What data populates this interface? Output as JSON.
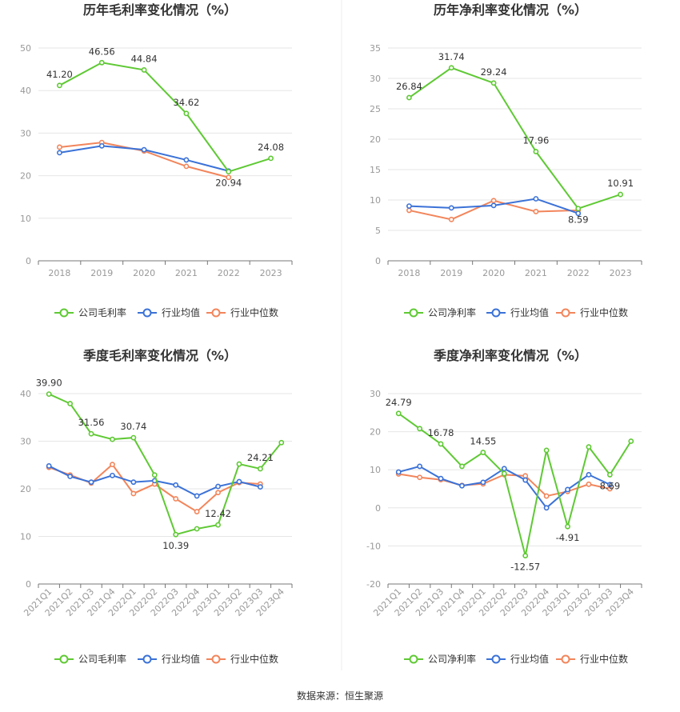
{
  "colors": {
    "company": "#5fc934",
    "industry_avg": "#3b72d7",
    "industry_median": "#f2855b",
    "grid": "#e6e6e6",
    "axis": "#777777",
    "divider": "#eeeeee"
  },
  "legend": {
    "gross": [
      "公司毛利率",
      "行业均值",
      "行业中位数"
    ],
    "net": [
      "公司净利率",
      "行业均值",
      "行业中位数"
    ]
  },
  "source": "数据来源：恒生聚源",
  "chart_data": [
    {
      "type": "line",
      "title": "历年毛利率变化情况（%）",
      "categories": [
        "2018",
        "2019",
        "2020",
        "2021",
        "2022",
        "2023"
      ],
      "ylim": [
        0,
        50
      ],
      "yticks": [
        0,
        10,
        20,
        30,
        40,
        50
      ],
      "grid": true,
      "legend_position": "bottom",
      "series": [
        {
          "name": "公司毛利率",
          "values": [
            41.2,
            46.56,
            44.84,
            34.62,
            20.94,
            24.08
          ]
        },
        {
          "name": "行业均值",
          "values": [
            25.4,
            27.0,
            26.1,
            23.7,
            21.1,
            null
          ]
        },
        {
          "name": "行业中位数",
          "values": [
            26.7,
            27.8,
            25.8,
            22.2,
            19.6,
            null
          ]
        }
      ],
      "data_labels": [
        {
          "index": 0,
          "text": "41.20"
        },
        {
          "index": 1,
          "text": "46.56"
        },
        {
          "index": 2,
          "text": "44.84"
        },
        {
          "index": 3,
          "text": "34.62"
        },
        {
          "index": 4,
          "text": "20.94"
        },
        {
          "index": 5,
          "text": "24.08"
        }
      ]
    },
    {
      "type": "line",
      "title": "历年净利率变化情况（%）",
      "categories": [
        "2018",
        "2019",
        "2020",
        "2021",
        "2022",
        "2023"
      ],
      "ylim": [
        0,
        35
      ],
      "yticks": [
        0,
        5,
        10,
        15,
        20,
        25,
        30,
        35
      ],
      "grid": true,
      "legend_position": "bottom",
      "series": [
        {
          "name": "公司净利率",
          "values": [
            26.84,
            31.74,
            29.24,
            17.96,
            8.59,
            10.91
          ]
        },
        {
          "name": "行业均值",
          "values": [
            9.0,
            8.7,
            9.1,
            10.2,
            7.8,
            null
          ]
        },
        {
          "name": "行业中位数",
          "values": [
            8.3,
            6.8,
            9.9,
            8.1,
            8.3,
            null
          ]
        }
      ],
      "data_labels": [
        {
          "index": 0,
          "text": "26.84"
        },
        {
          "index": 1,
          "text": "31.74"
        },
        {
          "index": 2,
          "text": "29.24"
        },
        {
          "index": 3,
          "text": "17.96"
        },
        {
          "index": 4,
          "text": "8.59"
        },
        {
          "index": 5,
          "text": "10.91"
        }
      ]
    },
    {
      "type": "line",
      "title": "季度毛利率变化情况（%）",
      "categories": [
        "2021Q1",
        "2021Q2",
        "2021Q3",
        "2021Q4",
        "2022Q1",
        "2022Q2",
        "2022Q3",
        "2022Q4",
        "2023Q1",
        "2023Q2",
        "2023Q3",
        "2023Q4"
      ],
      "ylim": [
        0,
        40
      ],
      "yticks": [
        0,
        10,
        20,
        30,
        40
      ],
      "grid": true,
      "legend_position": "bottom",
      "series": [
        {
          "name": "公司毛利率",
          "values": [
            39.9,
            37.9,
            31.56,
            30.4,
            30.74,
            22.9,
            10.39,
            11.6,
            12.42,
            25.2,
            24.21,
            29.7
          ]
        },
        {
          "name": "行业均值",
          "values": [
            24.8,
            22.6,
            21.4,
            22.8,
            21.4,
            21.7,
            20.8,
            18.5,
            20.5,
            21.5,
            20.4,
            null
          ]
        },
        {
          "name": "行业中位数",
          "values": [
            24.5,
            22.9,
            21.2,
            25.1,
            19.0,
            21.0,
            17.9,
            15.2,
            19.2,
            21.3,
            21.0,
            null
          ]
        }
      ],
      "data_labels": [
        {
          "index": 0,
          "text": "39.90"
        },
        {
          "index": 2,
          "text": "31.56"
        },
        {
          "index": 4,
          "text": "30.74"
        },
        {
          "index": 6,
          "text": "10.39"
        },
        {
          "index": 8,
          "text": "12.42"
        },
        {
          "index": 10,
          "text": "24.21"
        }
      ]
    },
    {
      "type": "line",
      "title": "季度净利率变化情况（%）",
      "categories": [
        "2021Q1",
        "2021Q2",
        "2021Q3",
        "2021Q4",
        "2022Q1",
        "2022Q2",
        "2022Q3",
        "2022Q4",
        "2023Q1",
        "2023Q2",
        "2023Q3",
        "2023Q4"
      ],
      "ylim": [
        -20,
        30
      ],
      "yticks": [
        -20,
        -10,
        0,
        10,
        20,
        30
      ],
      "grid": true,
      "legend_position": "bottom",
      "series": [
        {
          "name": "公司净利率",
          "values": [
            24.79,
            20.8,
            16.78,
            10.9,
            14.55,
            9.0,
            -12.57,
            15.1,
            -4.91,
            16.0,
            8.69,
            17.5
          ]
        },
        {
          "name": "行业均值",
          "values": [
            9.4,
            10.9,
            7.7,
            5.8,
            6.7,
            10.3,
            7.3,
            0.0,
            4.8,
            8.7,
            6.1,
            null
          ]
        },
        {
          "name": "行业中位数",
          "values": [
            8.9,
            8.0,
            7.4,
            5.9,
            6.3,
            8.7,
            8.4,
            3.1,
            4.3,
            6.2,
            5.0,
            null
          ]
        }
      ],
      "data_labels": [
        {
          "index": 0,
          "text": "24.79"
        },
        {
          "index": 2,
          "text": "16.78"
        },
        {
          "index": 4,
          "text": "14.55"
        },
        {
          "index": 6,
          "text": "-12.57"
        },
        {
          "index": 8,
          "text": "-4.91"
        },
        {
          "index": 10,
          "text": "8.69"
        }
      ]
    }
  ]
}
